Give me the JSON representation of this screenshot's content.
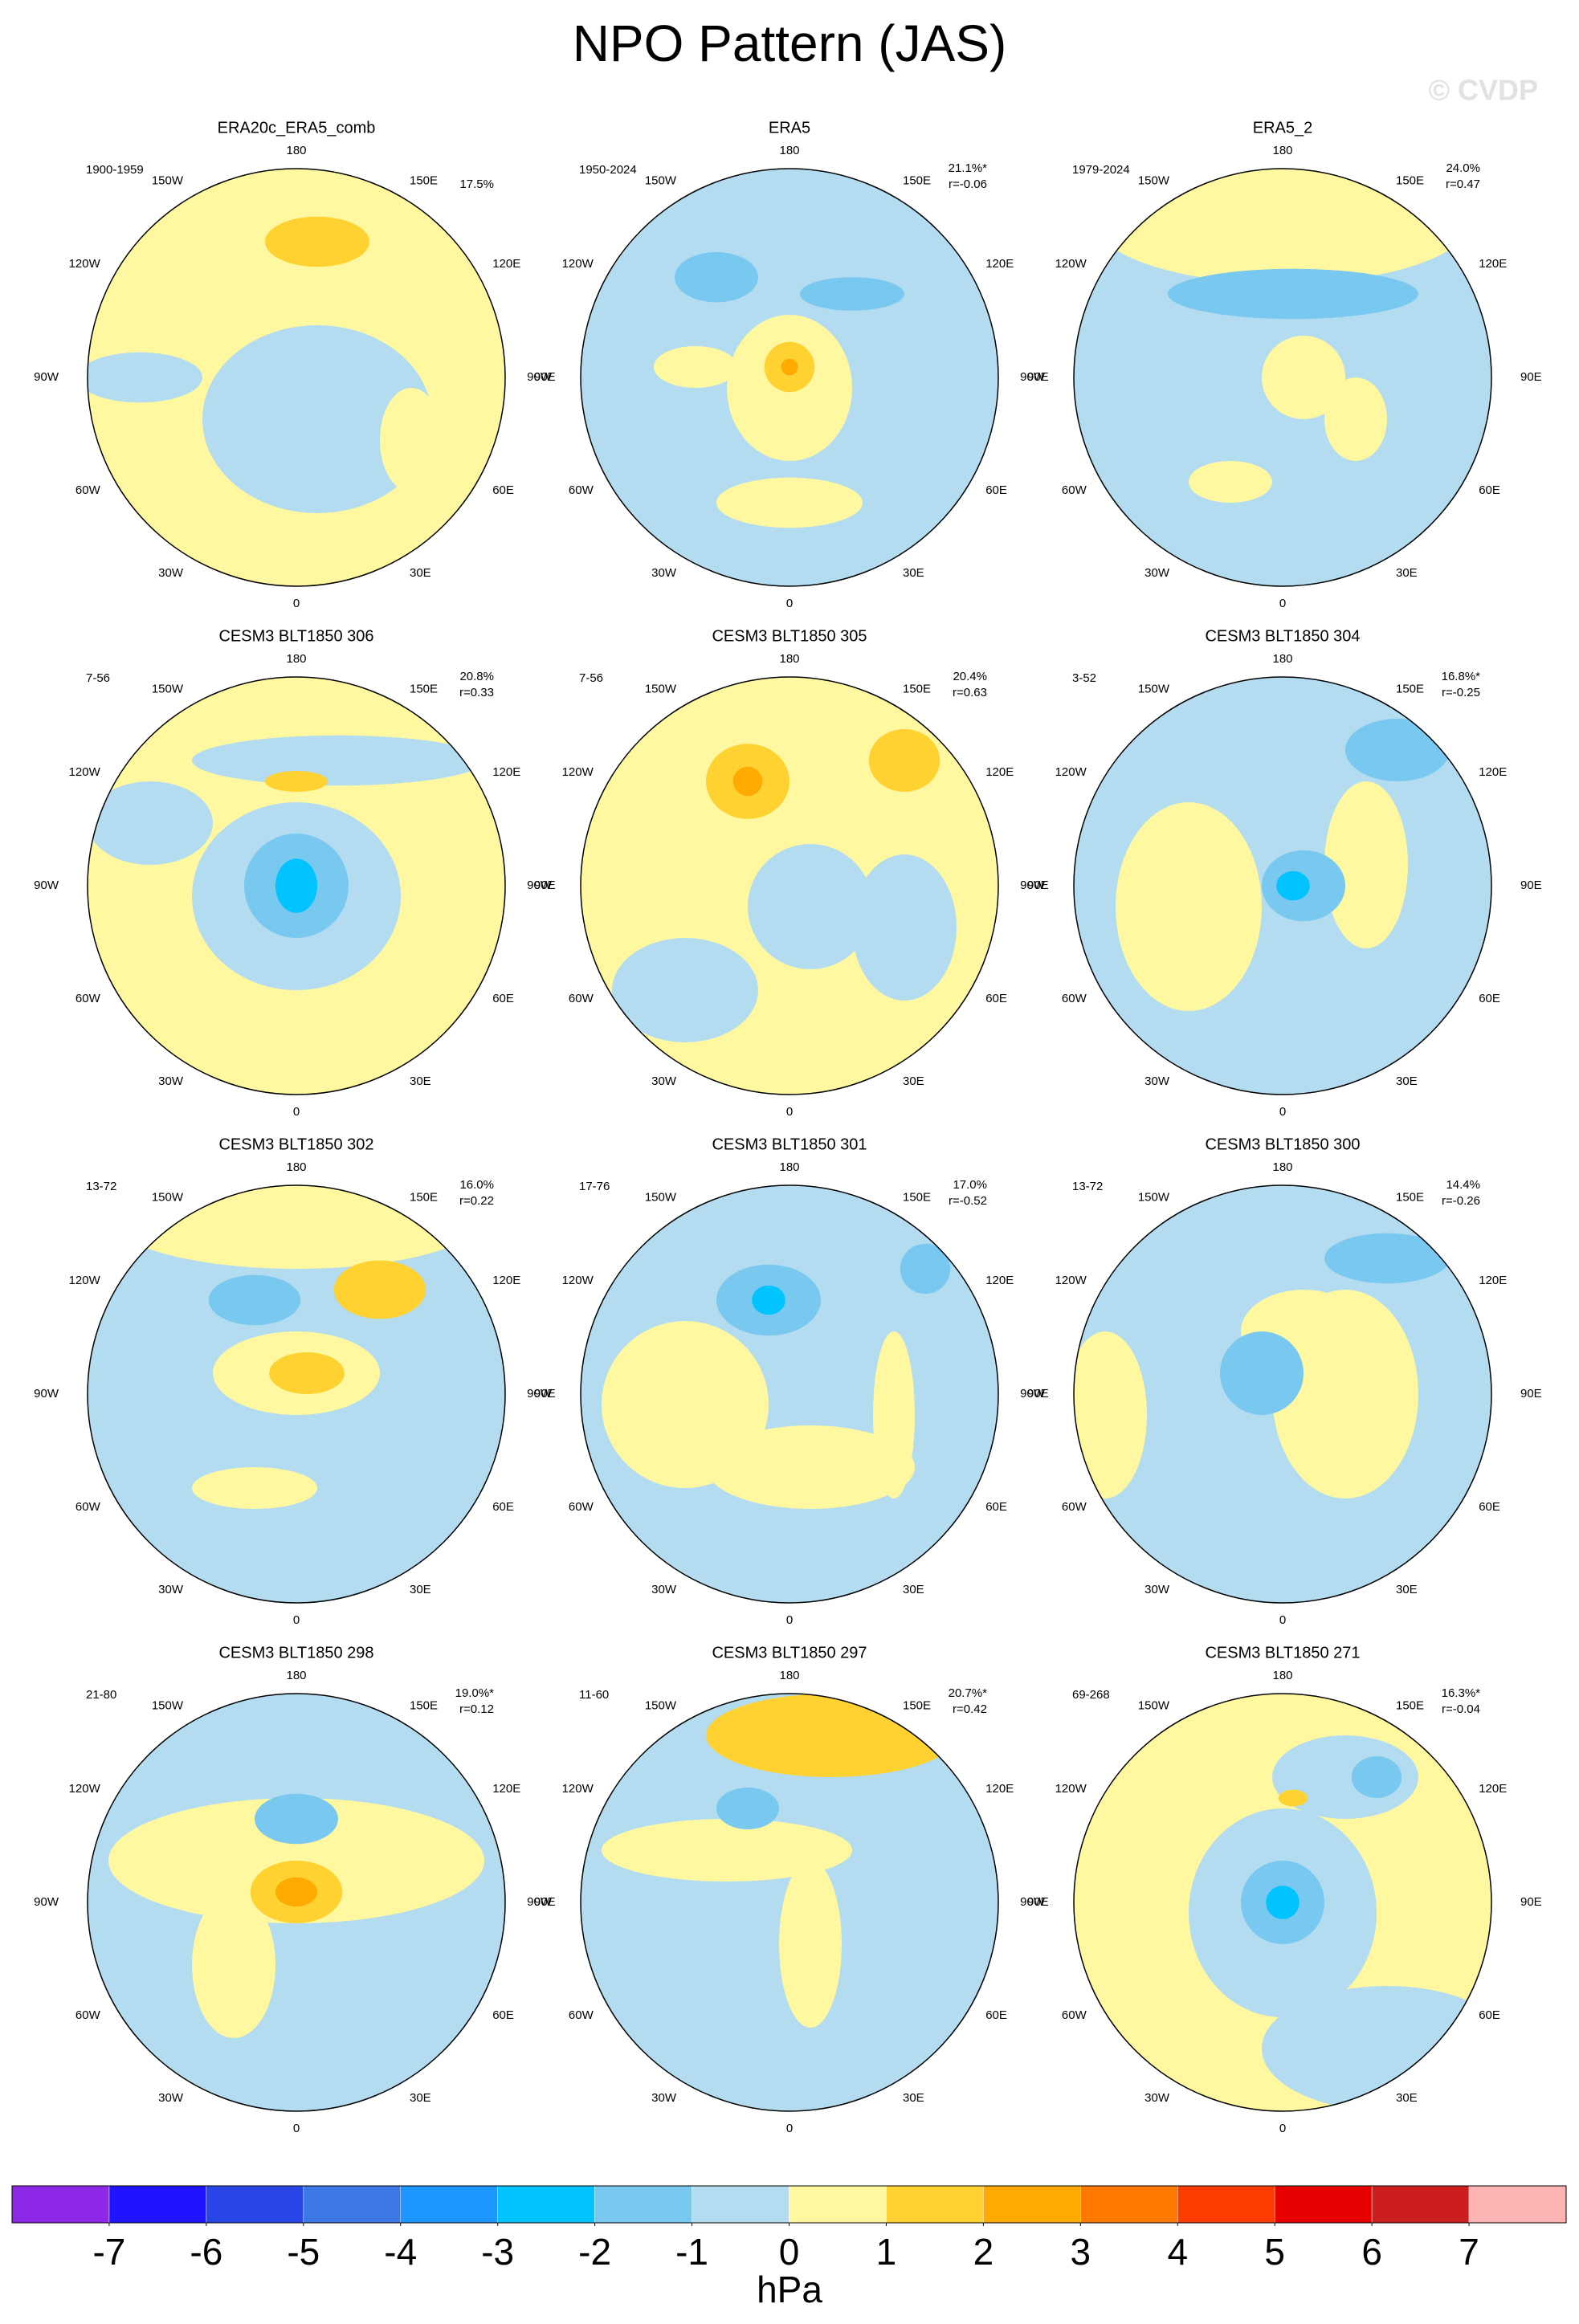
{
  "chart_data": {
    "type": "polar-map-panels",
    "title": "NPO Pattern (JAS)",
    "watermark": "© CVDP",
    "longitude_labels": [
      "0",
      "30E",
      "60E",
      "90E",
      "120E",
      "150E",
      "180",
      "150W",
      "120W",
      "90W",
      "60W",
      "30W"
    ],
    "panels": [
      {
        "title": "ERA20c_ERA5_comb",
        "period": "1900-1959",
        "variance": "17.5%"
      },
      {
        "title": "ERA5",
        "period": "1950-2024",
        "variance": "21.1%*",
        "r": "r=-0.06"
      },
      {
        "title": "ERA5_2",
        "period": "1979-2024",
        "variance": "24.0%",
        "r": "r=0.47"
      },
      {
        "title": "CESM3 BLT1850 306",
        "period": "7-56",
        "variance": "20.8%",
        "r": "r=0.33"
      },
      {
        "title": "CESM3 BLT1850 305",
        "period": "7-56",
        "variance": "20.4%",
        "r": "r=0.63"
      },
      {
        "title": "CESM3 BLT1850 304",
        "period": "3-52",
        "variance": "16.8%*",
        "r": "r=-0.25"
      },
      {
        "title": "CESM3 BLT1850 302",
        "period": "13-72",
        "variance": "16.0%",
        "r": "r=0.22"
      },
      {
        "title": "CESM3 BLT1850 301",
        "period": "17-76",
        "variance": "17.0%",
        "r": "r=-0.52"
      },
      {
        "title": "CESM3 BLT1850 300",
        "period": "13-72",
        "variance": "14.4%",
        "r": "r=-0.26"
      },
      {
        "title": "CESM3 BLT1850 298",
        "period": "21-80",
        "variance": "19.0%*",
        "r": "r=0.12"
      },
      {
        "title": "CESM3 BLT1850 297",
        "period": "11-60",
        "variance": "20.7%*",
        "r": "r=0.42"
      },
      {
        "title": "CESM3 BLT1850 271",
        "period": "69-268",
        "variance": "16.3%*",
        "r": "r=-0.04"
      }
    ],
    "colorbar": {
      "label": "hPa",
      "ticks": [
        -7,
        -6,
        -5,
        -4,
        -3,
        -2,
        -1,
        0,
        1,
        2,
        3,
        4,
        5,
        6,
        7
      ],
      "colors": [
        "#8c28e6",
        "#1e14ff",
        "#2846e6",
        "#3c78e6",
        "#1e96ff",
        "#00c3ff",
        "#78c8f0",
        "#b4dcf0",
        "#fff8a0",
        "#ffd232",
        "#ffaa00",
        "#ff7800",
        "#ff3c00",
        "#e60000",
        "#cd1e1e",
        "#ffb4b4"
      ]
    }
  }
}
